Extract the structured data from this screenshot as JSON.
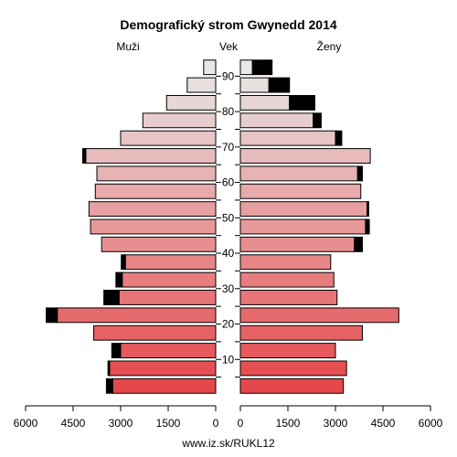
{
  "chart_data": {
    "type": "bar",
    "orientation": "horizontal-pyramid",
    "title": "Demografický strom Gwynedd 2014",
    "left_label": "Muži",
    "center_label": "Vek",
    "right_label": "Ženy",
    "source": "www.iz.sk/RUKL12",
    "age_ticks": [
      10,
      20,
      30,
      40,
      50,
      60,
      70,
      80,
      90
    ],
    "x_ticks_left": [
      "6000",
      "4500",
      "3000",
      "1500",
      "0"
    ],
    "x_ticks_right": [
      "0",
      "1500",
      "3000",
      "4500",
      "6000"
    ],
    "xlim": [
      0,
      6000
    ],
    "age_groups": [
      "0-4",
      "5-9",
      "10-14",
      "15-19",
      "20-24",
      "25-29",
      "30-34",
      "35-39",
      "40-44",
      "45-49",
      "50-54",
      "55-59",
      "60-64",
      "65-69",
      "70-74",
      "75-79",
      "80-84",
      "85-89",
      "90+"
    ],
    "series": [
      {
        "name": "Muži",
        "values": [
          3250,
          3350,
          3000,
          3850,
          5000,
          3050,
          2950,
          2850,
          3600,
          3950,
          4000,
          3800,
          3750,
          4100,
          3000,
          2300,
          1550,
          900,
          380
        ],
        "excess": [
          200,
          50,
          280,
          0,
          350,
          480,
          200,
          130,
          0,
          0,
          0,
          0,
          0,
          100,
          0,
          0,
          0,
          0,
          0
        ]
      },
      {
        "name": "Ženy",
        "values": [
          3250,
          3350,
          3000,
          3850,
          5000,
          3050,
          2950,
          2850,
          3600,
          3950,
          4000,
          3800,
          3700,
          4100,
          3000,
          2300,
          1550,
          900,
          380
        ],
        "excess": [
          0,
          0,
          0,
          0,
          0,
          0,
          0,
          0,
          250,
          120,
          50,
          0,
          150,
          0,
          200,
          250,
          800,
          650,
          620
        ]
      }
    ],
    "colors": {
      "base": "#e6474a",
      "top": "#e8e8e8",
      "excess": "#000000"
    }
  }
}
